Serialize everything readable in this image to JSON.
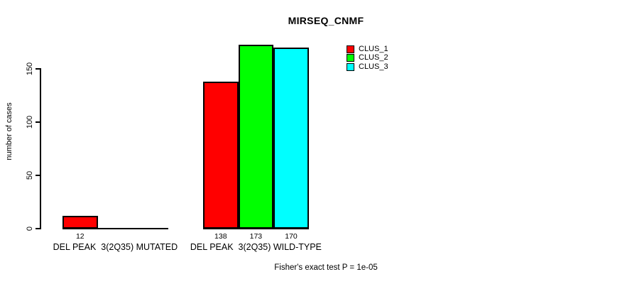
{
  "chart_data": {
    "type": "bar",
    "title": "MIRSEQ_CNMF",
    "ylabel": "number of cases",
    "xlabel": "",
    "categories": [
      "DEL PEAK  3(2Q35) MUTATED",
      "DEL PEAK  3(2Q35) WILD-TYPE"
    ],
    "series": [
      {
        "name": "CLUS_1",
        "color": "#ff0000",
        "values": [
          12,
          138
        ]
      },
      {
        "name": "CLUS_2",
        "color": "#00ff00",
        "values": [
          0,
          173
        ]
      },
      {
        "name": "CLUS_3",
        "color": "#00ffff",
        "values": [
          0,
          170
        ]
      }
    ],
    "bar_value_labels": [
      [
        12,
        null,
        null
      ],
      [
        138,
        173,
        170
      ]
    ],
    "yticks": [
      0,
      50,
      100,
      150
    ],
    "ylim": [
      0,
      173
    ],
    "grid": false,
    "legend_position": "top-right",
    "annotation": "Fisher's exact test P = 1e-05"
  },
  "colors": {
    "background": "#ffffff",
    "axis": "#000000",
    "text": "#000000",
    "clus_1": "#ff0000",
    "clus_2": "#00ff00",
    "clus_3": "#00ffff"
  }
}
